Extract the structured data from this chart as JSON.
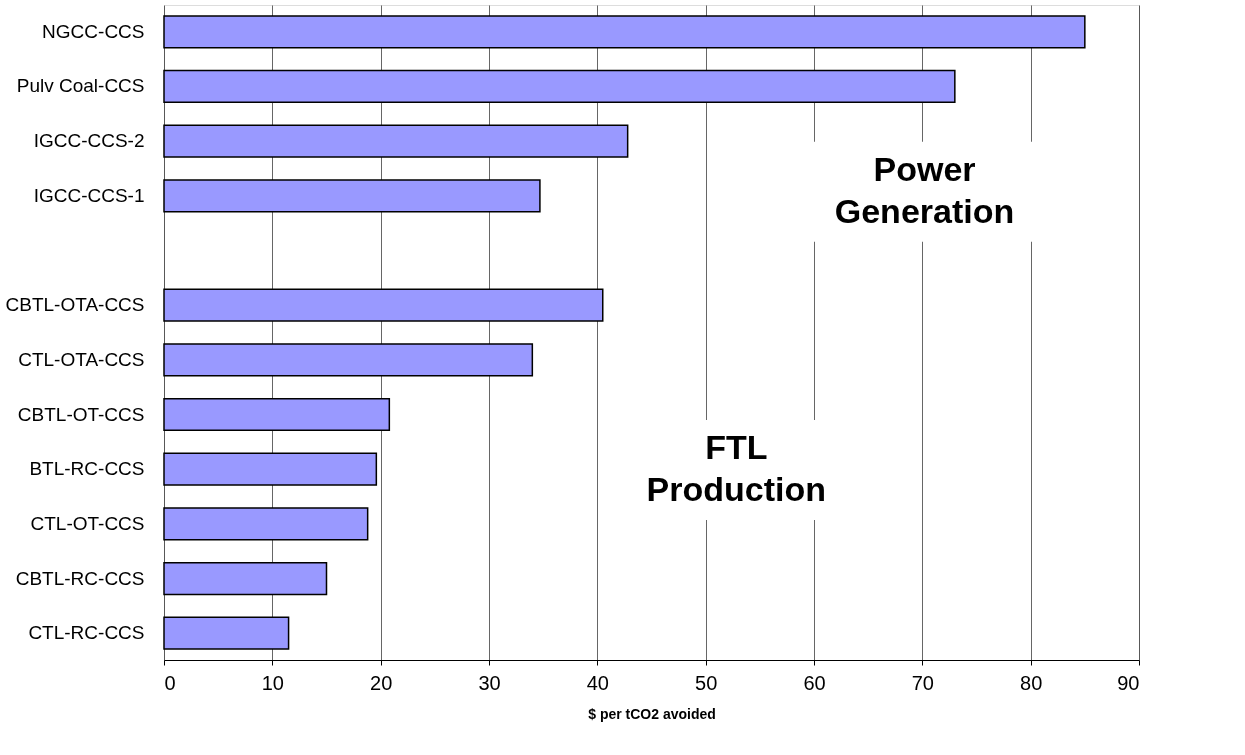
{
  "chart_data": {
    "type": "bar",
    "orientation": "horizontal",
    "xlabel": "$ per tCO2 avoided",
    "categories": [
      "NGCC-CCS",
      "Pulv Coal-CCS",
      "IGCC-CCS-2",
      "IGCC-CCS-1",
      null,
      "CBTL-OTA-CCS",
      "CTL-OTA-CCS",
      "CBTL-OT-CCS",
      "BTL-RC-CCS",
      "CTL-OT-CCS",
      "CBTL-RC-CCS",
      "CTL-RC-CCS"
    ],
    "values": [
      85.0,
      73.0,
      42.8,
      34.7,
      null,
      40.5,
      34.0,
      20.8,
      19.6,
      18.8,
      15.0,
      11.5
    ],
    "color": "#9999ff",
    "xlim": [
      0,
      90
    ],
    "xticks": [
      0,
      10,
      20,
      30,
      40,
      50,
      60,
      70,
      80,
      90
    ],
    "grid": "x",
    "annotations": [
      "Power Generation",
      "FTL Production"
    ]
  }
}
